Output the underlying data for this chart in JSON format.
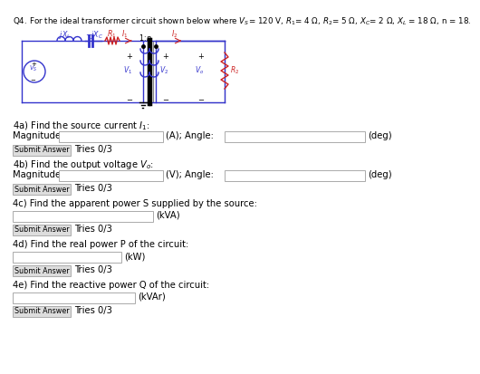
{
  "bg_color": "#ffffff",
  "wire_color": "#3333cc",
  "red_color": "#cc2222",
  "black": "#000000",
  "gray_box": "#d8d8d8",
  "input_border": "#999999",
  "title": "Q4. For the ideal transformer circuit shown below where V",
  "title2": "= 120 V, R",
  "title3": "= 4 Ω, R",
  "title4": "= 5 Ω, X",
  "title5": "= 2 Ω, X",
  "title6": " = 18 Ω, n = 18.",
  "sections": [
    {
      "label": "4a) Find the source current I",
      "label2": "1",
      "label3": ":"
    },
    {
      "label": "4b) Find the output voltage V",
      "label2": "o",
      "label3": ":"
    },
    {
      "label": "4c) Find the apparent power S supplied by the source:",
      "unit": "(kVA)"
    },
    {
      "label": "4d) Find the real power P of the circuit:",
      "unit": "(kW)"
    },
    {
      "label": "4e) Find the reactive power Q of the circuit:",
      "unit": "(kVAr)"
    }
  ]
}
